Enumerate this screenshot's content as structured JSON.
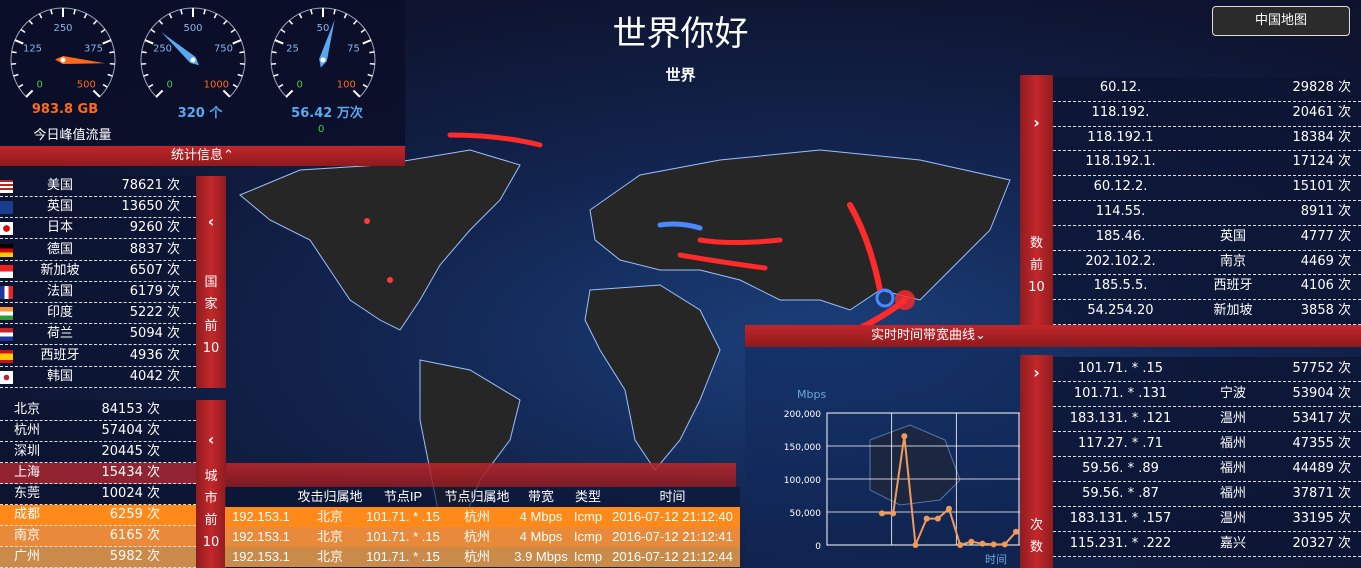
{
  "header": {
    "title": "世界你好",
    "subtitle": "世界",
    "china_map_button": "中国地图"
  },
  "gauges": [
    {
      "value_text": "983.8 GB",
      "label": "今日峰值流量",
      "ticks": [
        "0",
        "125",
        "250",
        "375",
        "500"
      ],
      "needle_fraction": 0.85,
      "color": "#ff6a1a"
    },
    {
      "value_text": "320 个",
      "ticks": [
        "0",
        "250",
        "500",
        "750",
        "1000"
      ],
      "needle_fraction": 0.32,
      "color": "#5aa8ee"
    },
    {
      "value_text": "56.42 万次",
      "ticks": [
        "0",
        "25",
        "50",
        "75",
        "100"
      ],
      "needle_fraction": 0.56,
      "color": "#5aa8ee",
      "extra": "0"
    }
  ],
  "stats_bar": {
    "label": "统计信息",
    "icon": "chevron-up-icon"
  },
  "country_panel": {
    "side_label": [
      "国",
      "家",
      "前",
      "10"
    ],
    "icon": "chevron-left-icon",
    "items": [
      {
        "flag": "us",
        "name": "美国",
        "count": "78621 次"
      },
      {
        "flag": "gb",
        "name": "英国",
        "count": "13650 次"
      },
      {
        "flag": "jp",
        "name": "日本",
        "count": "9260 次"
      },
      {
        "flag": "de",
        "name": "德国",
        "count": "8837 次"
      },
      {
        "flag": "sg",
        "name": "新加坡",
        "count": "6507 次"
      },
      {
        "flag": "fr",
        "name": "法国",
        "count": "6179 次"
      },
      {
        "flag": "in",
        "name": "印度",
        "count": "5222 次"
      },
      {
        "flag": "nl",
        "name": "荷兰",
        "count": "5094 次"
      },
      {
        "flag": "es",
        "name": "西班牙",
        "count": "4936 次"
      },
      {
        "flag": "kr",
        "name": "韩国",
        "count": "4042 次"
      }
    ]
  },
  "city_panel": {
    "side_label": [
      "城",
      "市",
      "前",
      "10"
    ],
    "icon": "chevron-left-icon",
    "items": [
      {
        "name": "北京",
        "count": "84153 次"
      },
      {
        "name": "杭州",
        "count": "57404 次"
      },
      {
        "name": "深圳",
        "count": "20445 次"
      },
      {
        "name": "上海",
        "count": "15434 次"
      },
      {
        "name": "东莞",
        "count": "10024 次"
      },
      {
        "name": "成都",
        "count": "6259 次"
      },
      {
        "name": "南京",
        "count": "6165 次"
      },
      {
        "name": "广州",
        "count": "5982 次"
      }
    ]
  },
  "attack_table": {
    "headers": [
      "攻击归属地",
      "节点IP",
      "节点归属地",
      "带宽",
      "类型",
      "时间"
    ],
    "rows": [
      {
        "src_ip": "192.153.1",
        "src_loc": "北京",
        "node_ip": "101.71. * .15",
        "node_loc": "杭州",
        "bandwidth": "4 Mbps",
        "type": "Icmp",
        "time": "2016-07-12 21:12:40"
      },
      {
        "src_ip": "192.153.1",
        "src_loc": "北京",
        "node_ip": "101.71. * .15",
        "node_loc": "杭州",
        "bandwidth": "4 Mbps",
        "type": "Icmp",
        "time": "2016-07-12 21:12:41"
      },
      {
        "src_ip": "192.153.1",
        "src_loc": "北京",
        "node_ip": "101.71. * .15",
        "node_loc": "杭州",
        "bandwidth": "3.9 Mbps",
        "type": "Icmp",
        "time": "2016-07-12 21:12:44"
      }
    ]
  },
  "ip_panel": {
    "side_label": [
      "数",
      "前",
      "10"
    ],
    "icon": "chevron-right-icon",
    "items": [
      {
        "ip": "60.12.",
        "loc": "",
        "count": "29828 次"
      },
      {
        "ip": "118.192.",
        "loc": "",
        "count": "20461 次"
      },
      {
        "ip": "118.192.1",
        "loc": "",
        "count": "18384 次"
      },
      {
        "ip": "118.192.1.",
        "loc": "",
        "count": "17124 次"
      },
      {
        "ip": "60.12.2.",
        "loc": "",
        "count": "15101 次"
      },
      {
        "ip": "114.55.",
        "loc": "",
        "count": "8911 次"
      },
      {
        "ip": "185.46.",
        "loc": "英国",
        "count": "4777 次"
      },
      {
        "ip": "202.102.2.",
        "loc": "南京",
        "count": "4469 次"
      },
      {
        "ip": "185.5.5.",
        "loc": "西班牙",
        "count": "4106 次"
      },
      {
        "ip": "54.254.20",
        "loc": "新加坡",
        "count": "3858 次"
      }
    ]
  },
  "node_panel": {
    "side_label": [
      "次",
      "数"
    ],
    "icon": "chevron-right-icon",
    "items": [
      {
        "ip": "101.71. * .15",
        "loc": "",
        "count": "57752 次"
      },
      {
        "ip": "101.71. * .131",
        "loc": "宁波",
        "count": "53904 次"
      },
      {
        "ip": "183.131. * .121",
        "loc": "温州",
        "count": "53417 次"
      },
      {
        "ip": "117.27. * .71",
        "loc": "福州",
        "count": "47355 次"
      },
      {
        "ip": "59.56. * .89",
        "loc": "福州",
        "count": "44489 次"
      },
      {
        "ip": "59.56. * .87",
        "loc": "福州",
        "count": "37871 次"
      },
      {
        "ip": "183.131. * .157",
        "loc": "温州",
        "count": "33195 次"
      },
      {
        "ip": "115.231. * .222",
        "loc": "嘉兴",
        "count": "20327 次"
      }
    ]
  },
  "bandwidth_panel": {
    "title": "实时时间带宽曲线",
    "icon": "chevron-down-icon"
  },
  "chart_data": {
    "type": "line",
    "ylabel": "Mbps",
    "xlabel": "时间",
    "ylim": [
      0,
      200000
    ],
    "yticks": [
      "200,000",
      "150,000",
      "100,000",
      "50,000",
      "0"
    ],
    "values": [
      48000,
      48000,
      165000,
      0,
      40000,
      40000,
      55000,
      0,
      5000,
      2000,
      1000,
      1000,
      20000
    ],
    "grid": true,
    "color": "#f29a5a"
  },
  "colors": {
    "accent_red": "#c4272b",
    "orange_row": "#ff8a1a",
    "gauge_orange": "#ff6a1a",
    "gauge_blue": "#5aa8ee"
  }
}
